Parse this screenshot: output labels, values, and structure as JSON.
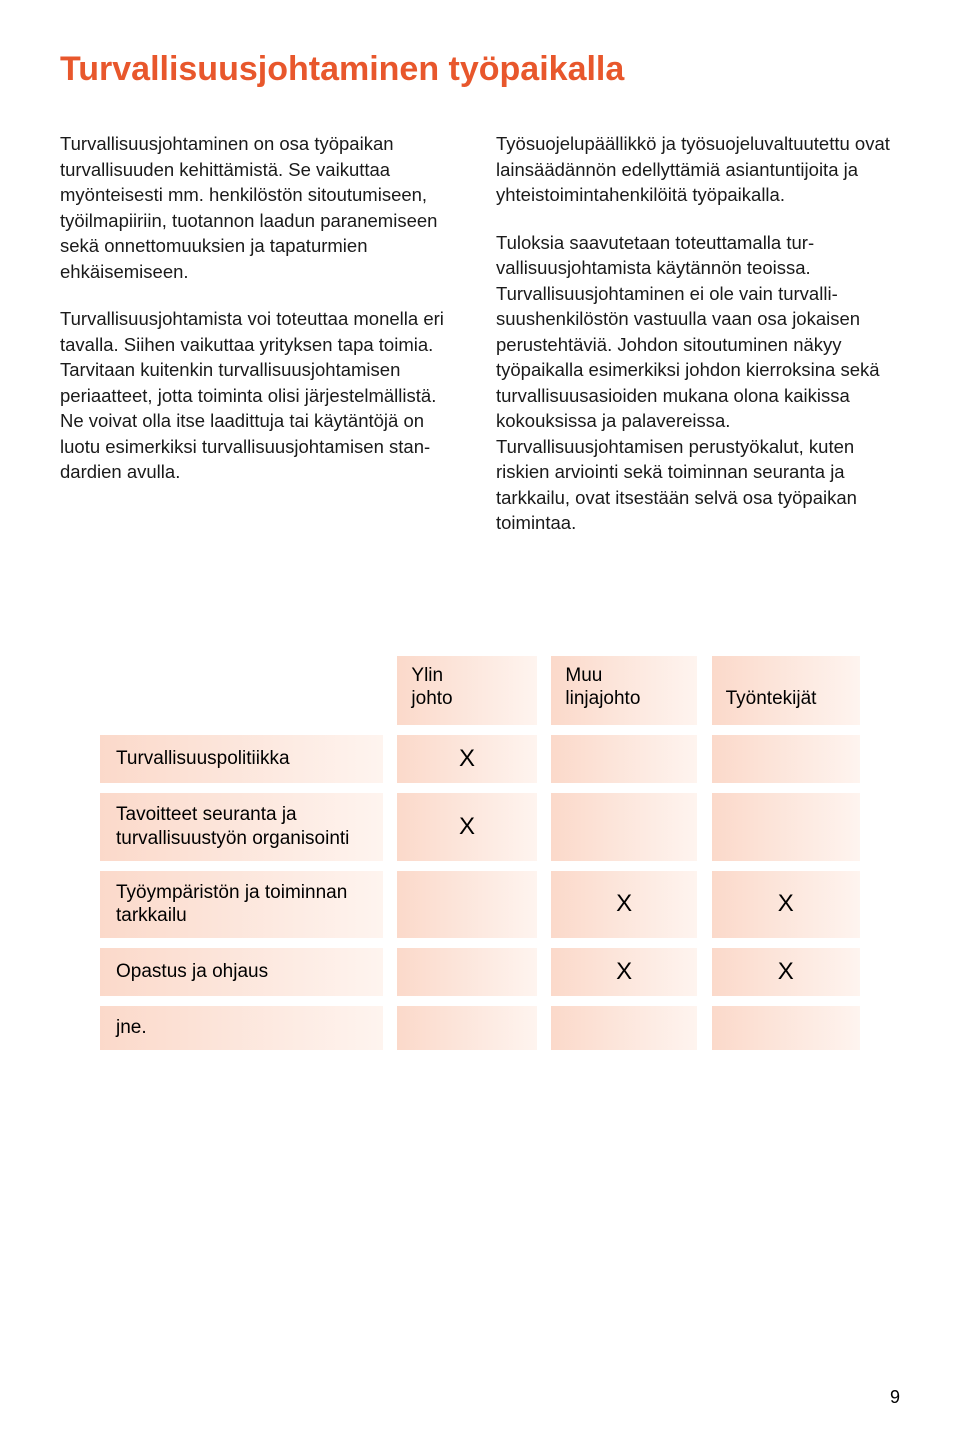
{
  "title": {
    "text": "Turvallisuusjohtaminen työpaikalla",
    "color": "#e8572c",
    "fontsize": 34
  },
  "body": {
    "left_paragraphs": [
      "Turvallisuusjohtaminen on osa työpaikan turvallisuuden kehittämistä. Se vaikuttaa myönteisesti mm. henkilöstön sitoutu­miseen, työilmapiiriin, tuotannon laadun paranemiseen sekä onnettomuuksien ja tapaturmien ehkäisemiseen.",
      "Turvallisuusjohtamista voi toteuttaa monella eri tavalla. Siihen vaikuttaa yri­tyksen tapa toimia. Tarvitaan kuitenkin turvallisuusjohtamisen periaatteet, jotta toiminta olisi järjestelmällistä. Ne voivat olla itse laadittuja tai käytäntöjä on luotu esimerkiksi turvallisuusjohtamisen stan­dardien avulla."
    ],
    "right_paragraphs": [
      "Työsuojelupäällikkö ja työsuojeluvaltuu­tettu ovat lainsäädännön edellyttämiä asiantuntijoita ja yhteistoimintahenkilöitä työpaikalla.",
      "Tuloksia saavutetaan toteuttamalla tur­vallisuusjohtamista käytännön teoissa. Turvallisuusjohtaminen ei ole vain turvalli­suushenkilöstön vastuulla vaan osa jokai­sen perustehtäviä. Johdon sitoutuminen näkyy työpaikalla esimerkiksi johdon kier­roksina sekä turvallisuusasioiden mukana olona kaikissa kokouksissa ja palavereis­sa. Turvallisuusjohtamisen perustyökalut, kuten riskien arviointi sekä toiminnan seuranta ja tarkkailu, ovat itsestään selvä osa työpaikan toimintaa."
    ],
    "fontsize": 18.5,
    "text_color": "#1a1a1a"
  },
  "table": {
    "type": "table",
    "band_gradient_start": "#fbd9ca",
    "band_gradient_end": "#fef4ef",
    "header_fontsize": 19,
    "cell_fontsize": 19,
    "xmark_fontsize": 24,
    "columns": [
      "",
      "Ylin johto",
      "Muu linjajohto",
      "Työntekijät"
    ],
    "rows": [
      {
        "label": "Turvallisuuspolitiikka",
        "marks": [
          true,
          false,
          false
        ]
      },
      {
        "label": "Tavoitteet seuranta ja turvallisuustyön organisointi",
        "marks": [
          true,
          false,
          false
        ]
      },
      {
        "label": "Työympäristön ja toiminnan tarkkailu",
        "marks": [
          false,
          true,
          true
        ]
      },
      {
        "label": "Opastus ja ohjaus",
        "marks": [
          false,
          true,
          true
        ]
      },
      {
        "label": "jne.",
        "marks": [
          false,
          false,
          false
        ]
      }
    ],
    "mark_glyph": "X",
    "column_widths": {
      "row_head": 300,
      "value": 155,
      "spacer": 18
    }
  },
  "page_number": "9"
}
